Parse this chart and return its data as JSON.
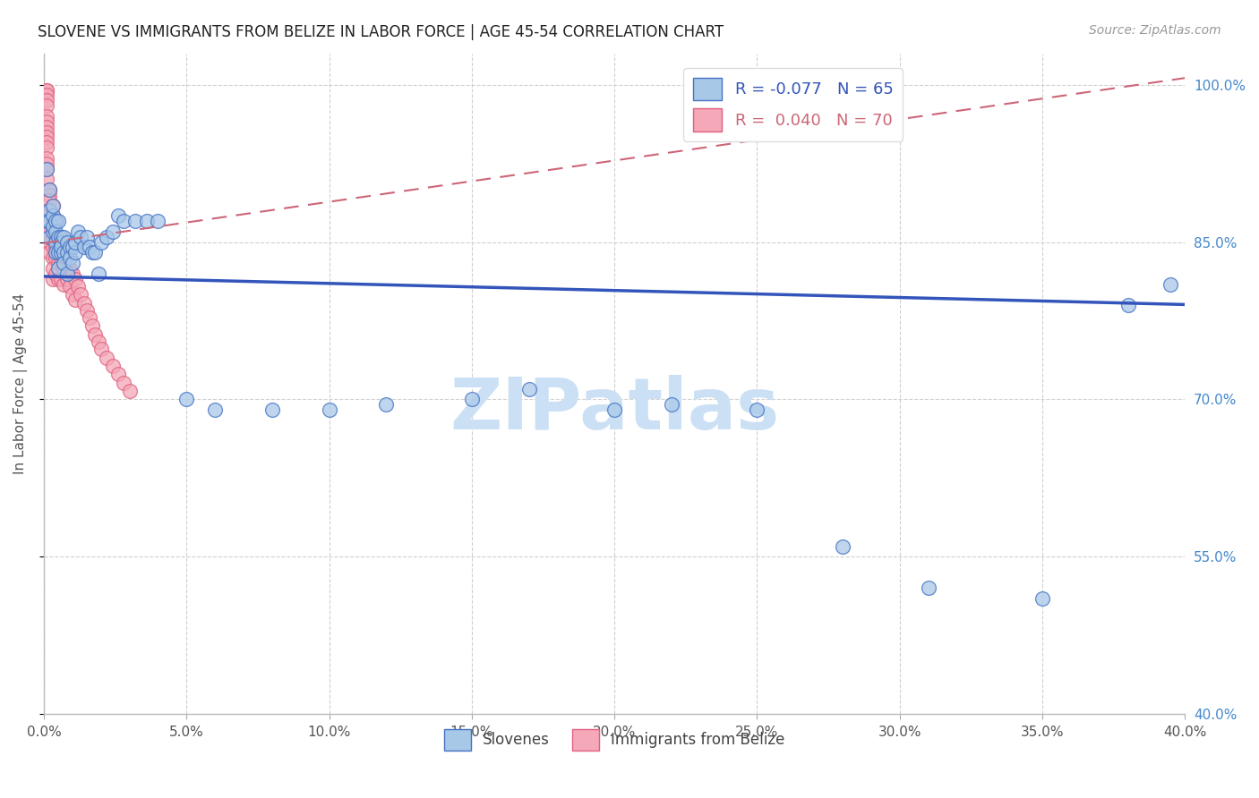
{
  "title": "SLOVENE VS IMMIGRANTS FROM BELIZE IN LABOR FORCE | AGE 45-54 CORRELATION CHART",
  "source": "Source: ZipAtlas.com",
  "ylabel": "In Labor Force | Age 45-54",
  "xlim": [
    0.0,
    0.4
  ],
  "ylim": [
    0.4,
    1.03
  ],
  "xticks": [
    0.0,
    0.05,
    0.1,
    0.15,
    0.2,
    0.25,
    0.3,
    0.35,
    0.4
  ],
  "yticks": [
    0.4,
    0.55,
    0.7,
    0.85,
    1.0
  ],
  "ytick_labels": [
    "40.0%",
    "55.0%",
    "70.0%",
    "85.0%",
    "100.0%"
  ],
  "xtick_labels": [
    "0.0%",
    "5.0%",
    "10.0%",
    "15.0%",
    "20.0%",
    "25.0%",
    "30.0%",
    "35.0%",
    "40.0%"
  ],
  "legend_blue_label": "R = -0.077   N = 65",
  "legend_pink_label": "R =  0.040   N = 70",
  "blue_fill": "#a8c8e8",
  "blue_edge": "#4472c4",
  "pink_fill": "#f4a8b8",
  "pink_edge": "#e06080",
  "blue_line": "#3355bb",
  "pink_line": "#cc6677",
  "watermark": "ZIPatlas",
  "watermark_color": "#cce0f5",
  "background_color": "#ffffff",
  "grid_color": "#d0d0d0",
  "title_color": "#222222",
  "right_tick_color": "#4488cc",
  "slovene_x": [
    0.001,
    0.001,
    0.002,
    0.002,
    0.002,
    0.002,
    0.003,
    0.003,
    0.003,
    0.003,
    0.004,
    0.004,
    0.004,
    0.004,
    0.005,
    0.005,
    0.005,
    0.005,
    0.006,
    0.006,
    0.006,
    0.006,
    0.007,
    0.007,
    0.007,
    0.008,
    0.008,
    0.008,
    0.009,
    0.009,
    0.01,
    0.01,
    0.011,
    0.011,
    0.012,
    0.013,
    0.014,
    0.015,
    0.016,
    0.017,
    0.018,
    0.019,
    0.02,
    0.022,
    0.024,
    0.026,
    0.028,
    0.032,
    0.036,
    0.04,
    0.05,
    0.06,
    0.08,
    0.1,
    0.12,
    0.15,
    0.17,
    0.2,
    0.22,
    0.25,
    0.28,
    0.31,
    0.35,
    0.38,
    0.395
  ],
  "slovene_y": [
    0.87,
    0.92,
    0.88,
    0.9,
    0.855,
    0.87,
    0.86,
    0.875,
    0.885,
    0.865,
    0.87,
    0.86,
    0.85,
    0.84,
    0.87,
    0.855,
    0.84,
    0.825,
    0.855,
    0.84,
    0.85,
    0.845,
    0.855,
    0.84,
    0.83,
    0.85,
    0.84,
    0.82,
    0.845,
    0.835,
    0.845,
    0.83,
    0.84,
    0.85,
    0.86,
    0.855,
    0.845,
    0.855,
    0.845,
    0.84,
    0.84,
    0.82,
    0.85,
    0.855,
    0.86,
    0.875,
    0.87,
    0.87,
    0.87,
    0.87,
    0.7,
    0.69,
    0.69,
    0.69,
    0.695,
    0.7,
    0.71,
    0.69,
    0.695,
    0.69,
    0.56,
    0.52,
    0.51,
    0.79,
    0.81
  ],
  "belize_x": [
    0.001,
    0.001,
    0.001,
    0.001,
    0.001,
    0.001,
    0.001,
    0.001,
    0.001,
    0.001,
    0.001,
    0.001,
    0.001,
    0.001,
    0.001,
    0.001,
    0.002,
    0.002,
    0.002,
    0.002,
    0.002,
    0.002,
    0.002,
    0.002,
    0.002,
    0.003,
    0.003,
    0.003,
    0.003,
    0.003,
    0.003,
    0.003,
    0.003,
    0.004,
    0.004,
    0.004,
    0.004,
    0.004,
    0.005,
    0.005,
    0.005,
    0.005,
    0.006,
    0.006,
    0.006,
    0.007,
    0.007,
    0.007,
    0.008,
    0.008,
    0.009,
    0.009,
    0.01,
    0.01,
    0.011,
    0.011,
    0.012,
    0.013,
    0.014,
    0.015,
    0.016,
    0.017,
    0.018,
    0.019,
    0.02,
    0.022,
    0.024,
    0.026,
    0.028,
    0.03
  ],
  "belize_y": [
    0.995,
    0.995,
    0.99,
    0.985,
    0.98,
    0.97,
    0.965,
    0.96,
    0.955,
    0.95,
    0.945,
    0.94,
    0.93,
    0.925,
    0.92,
    0.91,
    0.9,
    0.895,
    0.89,
    0.88,
    0.875,
    0.865,
    0.86,
    0.85,
    0.84,
    0.885,
    0.875,
    0.865,
    0.855,
    0.845,
    0.835,
    0.825,
    0.815,
    0.87,
    0.855,
    0.845,
    0.835,
    0.82,
    0.855,
    0.84,
    0.83,
    0.815,
    0.845,
    0.83,
    0.815,
    0.84,
    0.825,
    0.81,
    0.83,
    0.815,
    0.825,
    0.808,
    0.82,
    0.8,
    0.815,
    0.795,
    0.808,
    0.8,
    0.792,
    0.785,
    0.778,
    0.77,
    0.762,
    0.755,
    0.748,
    0.74,
    0.732,
    0.724,
    0.716,
    0.708
  ]
}
